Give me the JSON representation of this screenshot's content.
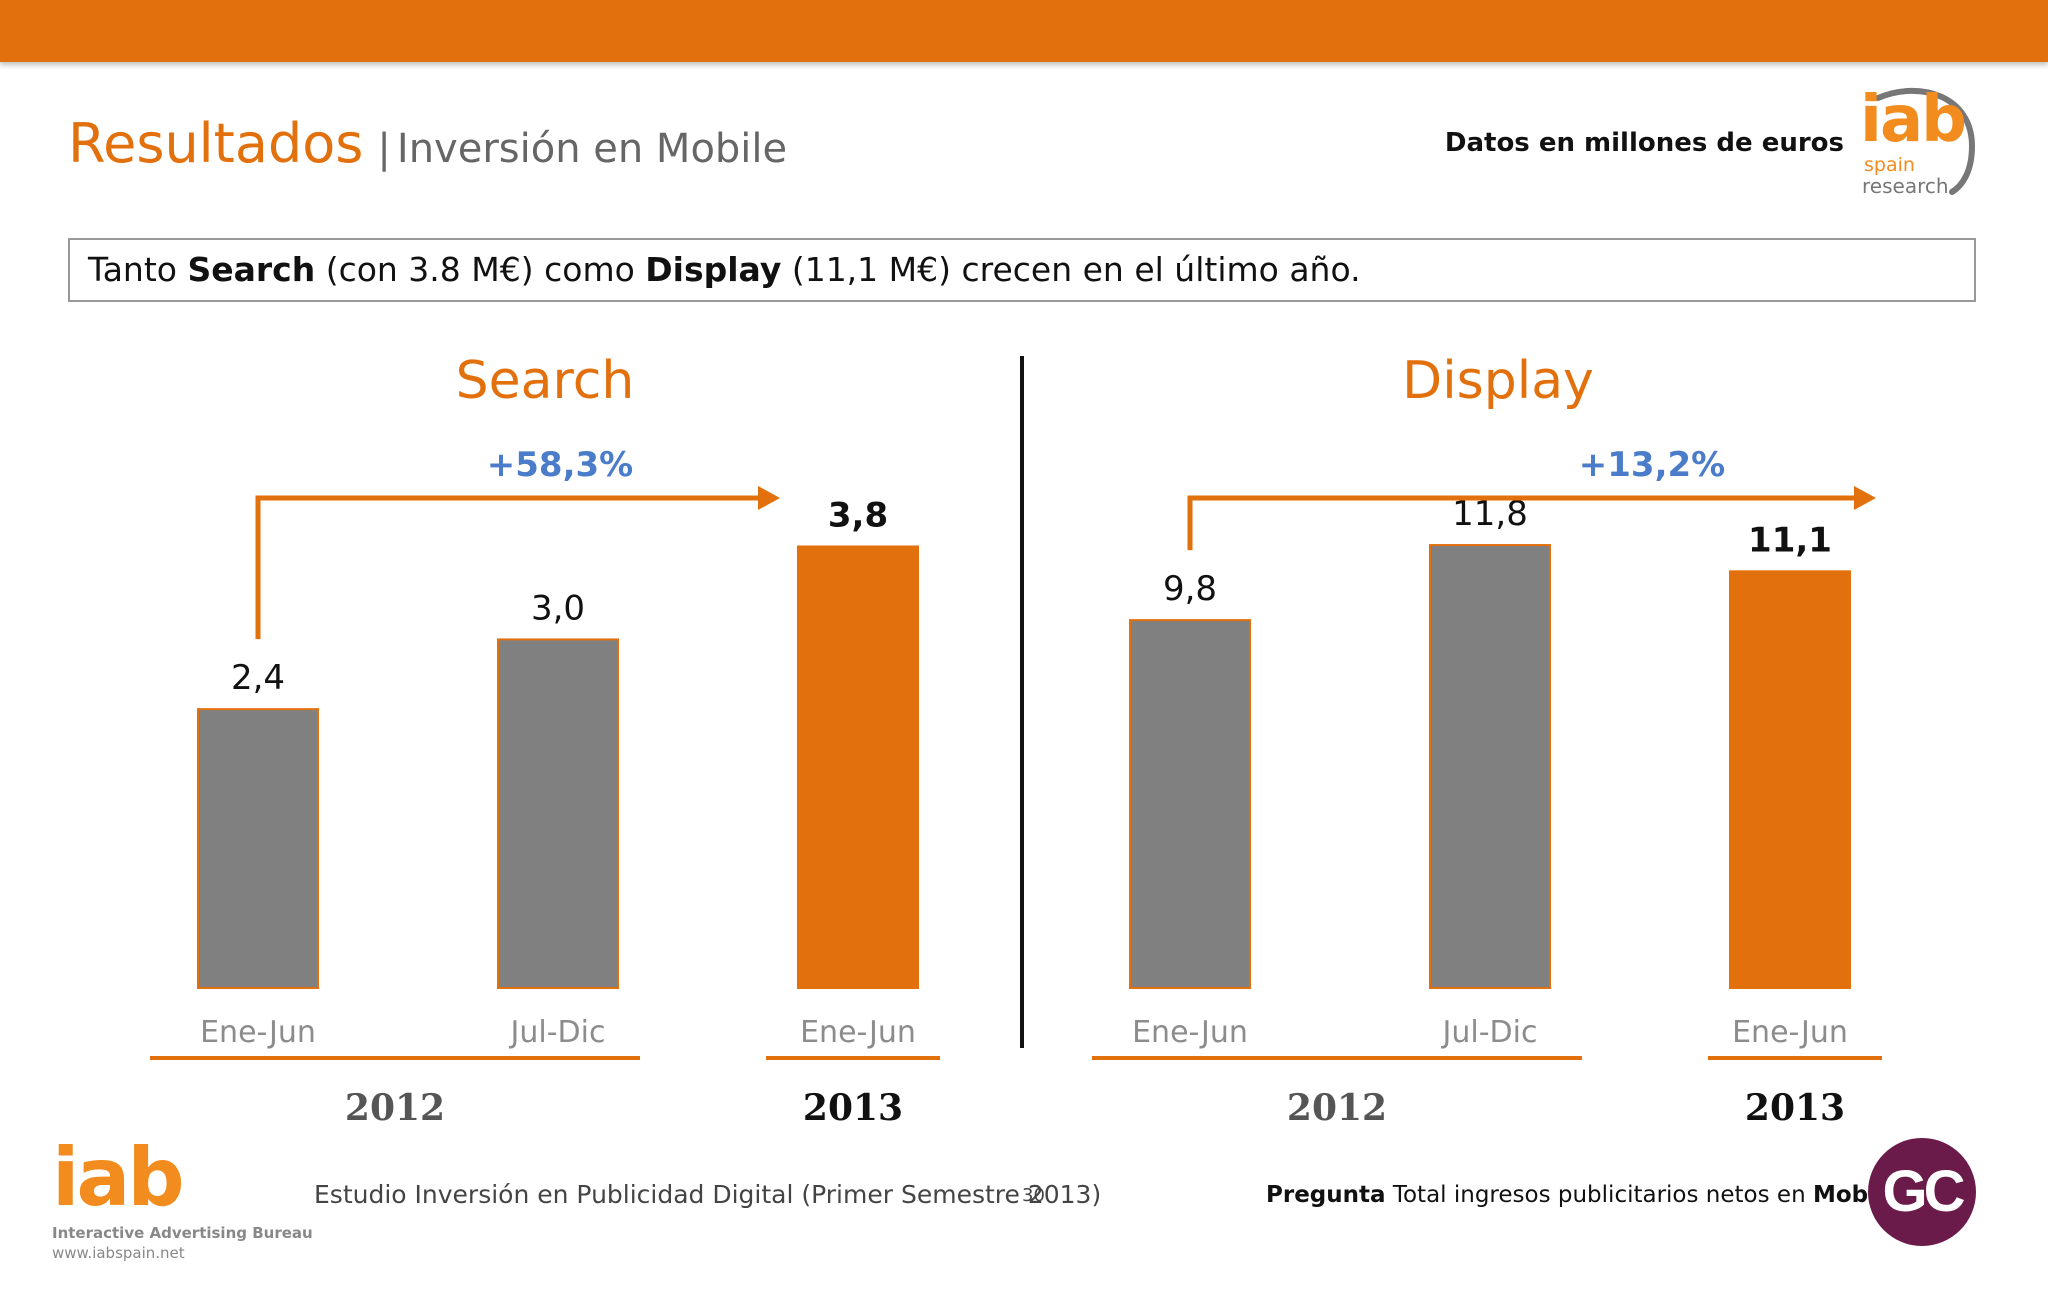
{
  "header": {
    "title": "Resultados",
    "separator": "|",
    "subtitle": "Inversión en Mobile",
    "units_note": "Datos en millones de euros",
    "logo": {
      "text": "iab",
      "line1": "spain",
      "line2": "research"
    }
  },
  "callout": {
    "part1": "Tanto ",
    "bold1": "Search",
    "part2": " (con 3.8 M€) como ",
    "bold2": "Display",
    "part3": " (11,1 M€) crecen en el último año."
  },
  "chart_data": [
    {
      "type": "bar",
      "title": "Search",
      "categories": [
        "Ene-Jun",
        "Jul-Dic",
        "Ene-Jun"
      ],
      "year_groups": [
        {
          "label": "2012",
          "categories": [
            0,
            1
          ]
        },
        {
          "label": "2013",
          "categories": [
            2
          ]
        }
      ],
      "values": [
        2.4,
        3.0,
        3.8
      ],
      "value_labels": [
        "2,4",
        "3,0",
        "3,8"
      ],
      "bar_colors": [
        "#808080",
        "#808080",
        "#e2700d"
      ],
      "growth_label": "+58,3%",
      "growth_from": 0,
      "growth_to": 2,
      "ylim": [
        0,
        4.2
      ]
    },
    {
      "type": "bar",
      "title": "Display",
      "categories": [
        "Ene-Jun",
        "Jul-Dic",
        "Ene-Jun"
      ],
      "year_groups": [
        {
          "label": "2012",
          "categories": [
            0,
            1
          ]
        },
        {
          "label": "2013",
          "categories": [
            2
          ]
        }
      ],
      "values": [
        9.8,
        11.8,
        11.1
      ],
      "value_labels": [
        "9,8",
        "11,8",
        "11,1"
      ],
      "bar_colors": [
        "#808080",
        "#808080",
        "#e2700d"
      ],
      "growth_label": "+13,2%",
      "growth_from": 0,
      "growth_to": 2,
      "ylim": [
        0,
        13
      ]
    }
  ],
  "colors": {
    "accent": "#e2700d",
    "gray_bar": "#808080",
    "growth_text": "#4a7cc9",
    "axis_label": "#8c8c8c"
  },
  "footer": {
    "logo_text": "iab",
    "org_name": "Interactive Advertising Bureau",
    "website": "www.iabspain.net",
    "study": "Estudio Inversión en Publicidad Digital (Primer Semestre 2013)",
    "page": "30",
    "question_label": "Pregunta",
    "question_text": " Total ingresos publicitarios netos en ",
    "question_bold": "Mobile",
    "badge": "GC"
  }
}
